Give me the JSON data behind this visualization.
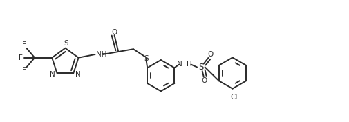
{
  "background_color": "#ffffff",
  "line_color": "#2a2a2a",
  "line_width": 1.4,
  "font_size": 7.5,
  "figsize": [
    5.06,
    1.77
  ],
  "dpi": 100,
  "xlim": [
    0,
    10.5
  ],
  "ylim": [
    0,
    3.5
  ]
}
